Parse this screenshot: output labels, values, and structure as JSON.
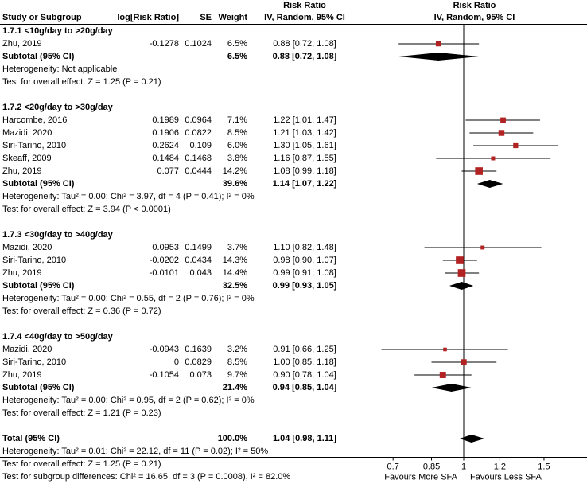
{
  "colors": {
    "square": "#b22222",
    "ci_line": "#000000",
    "diamond": "#000000",
    "axis": "#000000",
    "text": "#000000",
    "background": "#ffffff"
  },
  "chart_data": {
    "type": "forest",
    "effect_measure_header": "Risk Ratio",
    "model_header": "IV, Random, 95% CI",
    "columns": {
      "study": "Study or Subgroup",
      "log_rr": "log[Risk Ratio]",
      "se": "SE",
      "weight": "Weight"
    },
    "axis": {
      "scale": "log",
      "ticks": [
        {
          "value": 0.7,
          "label": "0.7"
        },
        {
          "value": 0.85,
          "label": "0.85"
        },
        {
          "value": 1,
          "label": "1"
        },
        {
          "value": 1.2,
          "label": "1.2"
        },
        {
          "value": 1.5,
          "label": "1.5"
        }
      ],
      "left_label": "Favours More SFA",
      "right_label": "Favours Less SFA"
    },
    "rows": [
      {
        "type": "subgroup",
        "label": "1.7.1 <10g/day to >20g/day"
      },
      {
        "type": "study",
        "study": "Zhu, 2019",
        "log_rr": "-0.1278",
        "se": "0.1024",
        "weight": "6.5%",
        "ci_text": "0.88 [0.72, 1.08]",
        "rr": 0.88,
        "lo": 0.72,
        "hi": 1.08,
        "weight_pct": 6.5
      },
      {
        "type": "subtotal",
        "label": "Subtotal (95% CI)",
        "weight": "6.5%",
        "ci_text": "0.88 [0.72, 1.08]",
        "rr": 0.88,
        "lo": 0.72,
        "hi": 1.08
      },
      {
        "type": "note",
        "text": "Heterogeneity: Not applicable"
      },
      {
        "type": "note",
        "text": "Test for overall effect: Z = 1.25 (P = 0.21)"
      },
      {
        "type": "blank"
      },
      {
        "type": "subgroup",
        "label": "1.7.2 <20g/day to >30g/day"
      },
      {
        "type": "study",
        "study": "Harcombe, 2016",
        "log_rr": "0.1989",
        "se": "0.0964",
        "weight": "7.1%",
        "ci_text": "1.22 [1.01, 1.47]",
        "rr": 1.22,
        "lo": 1.01,
        "hi": 1.47,
        "weight_pct": 7.1
      },
      {
        "type": "study",
        "study": "Mazidi, 2020",
        "log_rr": "0.1906",
        "se": "0.0822",
        "weight": "8.5%",
        "ci_text": "1.21 [1.03, 1.42]",
        "rr": 1.21,
        "lo": 1.03,
        "hi": 1.42,
        "weight_pct": 8.5
      },
      {
        "type": "study",
        "study": "Siri-Tarino, 2010",
        "log_rr": "0.2624",
        "se": "0.109",
        "weight": "6.0%",
        "ci_text": "1.30 [1.05, 1.61]",
        "rr": 1.3,
        "lo": 1.05,
        "hi": 1.61,
        "weight_pct": 6.0
      },
      {
        "type": "study",
        "study": "Skeaff, 2009",
        "log_rr": "0.1484",
        "se": "0.1468",
        "weight": "3.8%",
        "ci_text": "1.16 [0.87, 1.55]",
        "rr": 1.16,
        "lo": 0.87,
        "hi": 1.55,
        "weight_pct": 3.8
      },
      {
        "type": "study",
        "study": "Zhu, 2019",
        "log_rr": "0.077",
        "se": "0.0444",
        "weight": "14.2%",
        "ci_text": "1.08 [0.99, 1.18]",
        "rr": 1.08,
        "lo": 0.99,
        "hi": 1.18,
        "weight_pct": 14.2
      },
      {
        "type": "subtotal",
        "label": "Subtotal (95% CI)",
        "weight": "39.6%",
        "ci_text": "1.14 [1.07, 1.22]",
        "rr": 1.14,
        "lo": 1.07,
        "hi": 1.22
      },
      {
        "type": "note",
        "text": "Heterogeneity: Tau² = 0.00; Chi² = 3.97, df = 4 (P = 0.41); I² = 0%"
      },
      {
        "type": "note",
        "text": "Test for overall effect: Z = 3.94 (P < 0.0001)"
      },
      {
        "type": "blank"
      },
      {
        "type": "subgroup",
        "label": "1.7.3 <30g/day to >40g/day"
      },
      {
        "type": "study",
        "study": "Mazidi, 2020",
        "log_rr": "0.0953",
        "se": "0.1499",
        "weight": "3.7%",
        "ci_text": "1.10 [0.82, 1.48]",
        "rr": 1.1,
        "lo": 0.82,
        "hi": 1.48,
        "weight_pct": 3.7
      },
      {
        "type": "study",
        "study": "Siri-Tarino, 2010",
        "log_rr": "-0.0202",
        "se": "0.0434",
        "weight": "14.3%",
        "ci_text": "0.98 [0.90, 1.07]",
        "rr": 0.98,
        "lo": 0.9,
        "hi": 1.07,
        "weight_pct": 14.3
      },
      {
        "type": "study",
        "study": "Zhu, 2019",
        "log_rr": "-0.0101",
        "se": "0.043",
        "weight": "14.4%",
        "ci_text": "0.99 [0.91, 1.08]",
        "rr": 0.99,
        "lo": 0.91,
        "hi": 1.08,
        "weight_pct": 14.4
      },
      {
        "type": "subtotal",
        "label": "Subtotal (95% CI)",
        "weight": "32.5%",
        "ci_text": "0.99 [0.93, 1.05]",
        "rr": 0.99,
        "lo": 0.93,
        "hi": 1.05
      },
      {
        "type": "note",
        "text": "Heterogeneity: Tau² = 0.00; Chi² = 0.55, df = 2 (P = 0.76); I² = 0%"
      },
      {
        "type": "note",
        "text": "Test for overall effect: Z = 0.36 (P = 0.72)"
      },
      {
        "type": "blank"
      },
      {
        "type": "subgroup",
        "label": "1.7.4 <40g/day to >50g/day"
      },
      {
        "type": "study",
        "study": "Mazidi, 2020",
        "log_rr": "-0.0943",
        "se": "0.1639",
        "weight": "3.2%",
        "ci_text": "0.91 [0.66, 1.25]",
        "rr": 0.91,
        "lo": 0.66,
        "hi": 1.25,
        "weight_pct": 3.2
      },
      {
        "type": "study",
        "study": "Siri-Tarino, 2010",
        "log_rr": "0",
        "se": "0.0829",
        "weight": "8.5%",
        "ci_text": "1.00 [0.85, 1.18]",
        "rr": 1.0,
        "lo": 0.85,
        "hi": 1.18,
        "weight_pct": 8.5
      },
      {
        "type": "study",
        "study": "Zhu, 2019",
        "log_rr": "-0.1054",
        "se": "0.073",
        "weight": "9.7%",
        "ci_text": "0.90 [0.78, 1.04]",
        "rr": 0.9,
        "lo": 0.78,
        "hi": 1.04,
        "weight_pct": 9.7
      },
      {
        "type": "subtotal",
        "label": "Subtotal (95% CI)",
        "weight": "21.4%",
        "ci_text": "0.94 [0.85, 1.04]",
        "rr": 0.94,
        "lo": 0.85,
        "hi": 1.04
      },
      {
        "type": "note",
        "text": "Heterogeneity: Tau² = 0.00; Chi² = 0.95, df = 2 (P = 0.62); I² = 0%"
      },
      {
        "type": "note",
        "text": "Test for overall effect: Z = 1.21 (P = 0.23)"
      },
      {
        "type": "blank"
      },
      {
        "type": "total",
        "label": "Total (95% CI)",
        "weight": "100.0%",
        "ci_text": "1.04 [0.98, 1.11]",
        "rr": 1.04,
        "lo": 0.98,
        "hi": 1.11
      },
      {
        "type": "note",
        "text": "Heterogeneity: Tau² = 0.01; Chi² = 22.12, df = 11 (P = 0.02); I² = 50%"
      },
      {
        "type": "note",
        "text": "Test for overall effect: Z = 1.25 (P = 0.21)"
      },
      {
        "type": "note",
        "text": "Test for subgroup differences: Chi² = 16.65, df = 3 (P = 0.0008), I² = 82.0%"
      }
    ]
  }
}
